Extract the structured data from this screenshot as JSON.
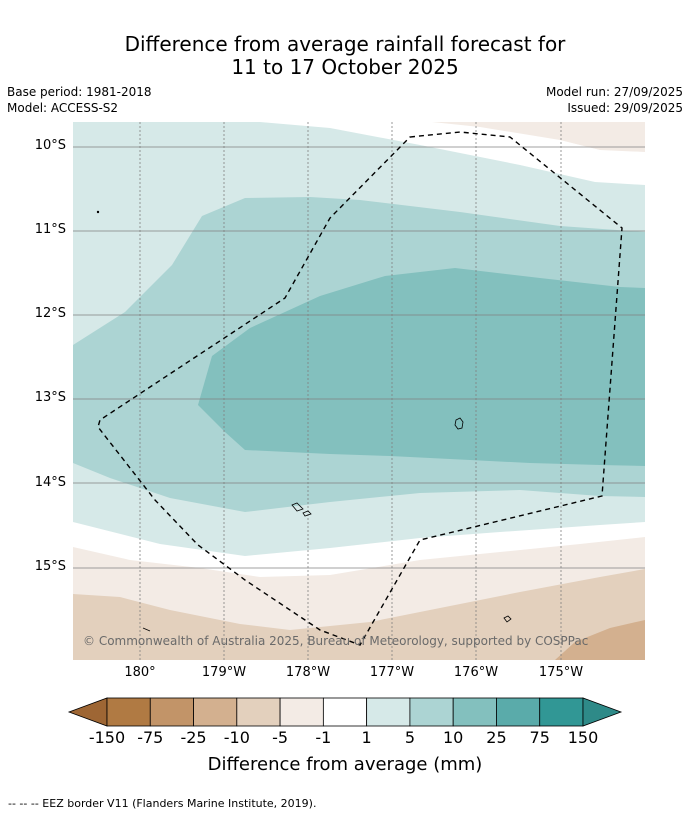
{
  "title": {
    "line1": "Difference from average rainfall forecast for",
    "line2": "11 to 17 October 2025"
  },
  "meta": {
    "base_period": "Base period: 1981-2018",
    "model": "Model: ACCESS-S2",
    "model_run": "Model run: 27/09/2025",
    "issued": "Issued: 29/09/2025"
  },
  "map": {
    "latitude_labels": [
      "10°S",
      "11°S",
      "12°S",
      "13°S",
      "14°S",
      "15°S"
    ],
    "longitude_labels": [
      "180°",
      "179°W",
      "178°W",
      "177°W",
      "176°W",
      "175°W"
    ],
    "attribution": "© Commonwealth of Australia 2025, Bureau of Meteorology, supported by COSPPac"
  },
  "colorbar": {
    "ticks": [
      "-150",
      "-75",
      "-25",
      "-10",
      "-5",
      "-1",
      "1",
      "5",
      "10",
      "25",
      "75",
      "150"
    ],
    "colors": [
      "#b07a43",
      "#c29468",
      "#d3b08f",
      "#e3d0bd",
      "#f3ebe5",
      "#ffffff",
      "#d6e9e8",
      "#acd4d3",
      "#83c0be",
      "#5aabaa",
      "#319795"
    ],
    "underflow_color": "#9e6634",
    "overflow_color": "#2e8a88",
    "title": "Difference from average (mm)"
  },
  "footer": "--  --  -- EEZ border V11 (Flanders Marine Institute, 2019)."
}
